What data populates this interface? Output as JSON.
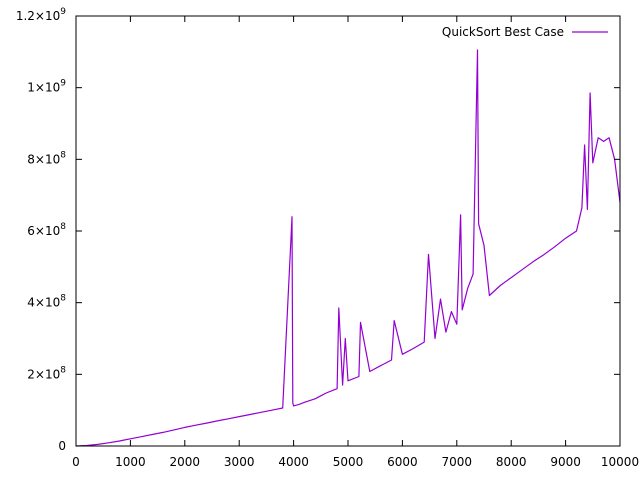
{
  "chart_data": {
    "type": "line",
    "title": "",
    "xlabel": "",
    "ylabel": "",
    "xlim": [
      0,
      10000
    ],
    "ylim": [
      0,
      1200000000
    ],
    "grid": false,
    "legend_position": "top-right",
    "x_ticks": [
      {
        "value": 0,
        "label": "0"
      },
      {
        "value": 1000,
        "label": "1000"
      },
      {
        "value": 2000,
        "label": "2000"
      },
      {
        "value": 3000,
        "label": "3000"
      },
      {
        "value": 4000,
        "label": "4000"
      },
      {
        "value": 5000,
        "label": "5000"
      },
      {
        "value": 6000,
        "label": "6000"
      },
      {
        "value": 7000,
        "label": "7000"
      },
      {
        "value": 8000,
        "label": "8000"
      },
      {
        "value": 9000,
        "label": "9000"
      },
      {
        "value": 10000,
        "label": "10000"
      }
    ],
    "y_ticks": [
      {
        "value": 0,
        "mantissa": "0",
        "exponent": ""
      },
      {
        "value": 200000000,
        "mantissa": "2×10",
        "exponent": "8"
      },
      {
        "value": 400000000,
        "mantissa": "4×10",
        "exponent": "8"
      },
      {
        "value": 600000000,
        "mantissa": "6×10",
        "exponent": "8"
      },
      {
        "value": 800000000,
        "mantissa": "8×10",
        "exponent": "8"
      },
      {
        "value": 1000000000,
        "mantissa": "1×10",
        "exponent": "9"
      },
      {
        "value": 1200000000,
        "mantissa": "1.2×10",
        "exponent": "9"
      }
    ],
    "series": [
      {
        "name": "QuickSort Best Case",
        "color": "#9400d3",
        "x": [
          0,
          200,
          400,
          600,
          800,
          1000,
          1200,
          1400,
          1600,
          1800,
          2000,
          2200,
          2400,
          2600,
          2800,
          3000,
          3200,
          3400,
          3600,
          3800,
          3950,
          3970,
          3985,
          4000,
          4100,
          4200,
          4400,
          4500,
          4600,
          4800,
          4830,
          4900,
          4950,
          5000,
          5200,
          5230,
          5400,
          5600,
          5800,
          5850,
          6000,
          6200,
          6400,
          6480,
          6600,
          6700,
          6800,
          6900,
          7000,
          7070,
          7100,
          7200,
          7300,
          7380,
          7400,
          7500,
          7600,
          7800,
          8000,
          8200,
          8400,
          8600,
          8800,
          9000,
          9200,
          9300,
          9350,
          9400,
          9450,
          9500,
          9600,
          9700,
          9800,
          9900,
          10000
        ],
        "y": [
          0,
          1500000,
          4500000,
          9000000,
          14000000,
          20000000,
          26000000,
          32000000,
          38000000,
          45000000,
          52000000,
          58000000,
          64000000,
          70000000,
          76000000,
          82000000,
          88000000,
          94000000,
          100000000,
          106000000,
          575000000,
          640000000,
          120000000,
          112000000,
          116000000,
          122000000,
          132000000,
          140000000,
          148000000,
          160000000,
          385000000,
          170000000,
          300000000,
          182000000,
          194000000,
          345000000,
          208000000,
          224000000,
          240000000,
          350000000,
          256000000,
          272000000,
          290000000,
          535000000,
          300000000,
          410000000,
          318000000,
          375000000,
          340000000,
          645000000,
          380000000,
          440000000,
          480000000,
          1105000000,
          620000000,
          560000000,
          420000000,
          448000000,
          470000000,
          492000000,
          514000000,
          534000000,
          556000000,
          580000000,
          600000000,
          665000000,
          840000000,
          660000000,
          985000000,
          790000000,
          860000000,
          850000000,
          860000000,
          800000000,
          680000000
        ]
      }
    ]
  }
}
